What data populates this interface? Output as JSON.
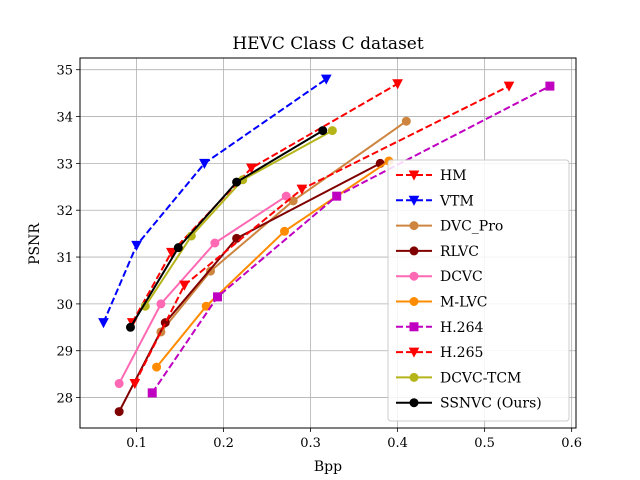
{
  "chart_data": {
    "type": "line",
    "title": "HEVC Class C dataset",
    "xlabel": "Bpp",
    "ylabel": "PSNR",
    "xlim": [
      0.035,
      0.605
    ],
    "ylim": [
      27.35,
      35.25
    ],
    "xticks": [
      "0.1",
      "0.2",
      "0.3",
      "0.4",
      "0.5",
      "0.6"
    ],
    "yticks": [
      "28",
      "29",
      "30",
      "31",
      "32",
      "33",
      "34",
      "35"
    ],
    "grid": true,
    "legend_position": "lower-right",
    "series": [
      {
        "name": "HM",
        "color": "#ff0000",
        "dash": "dashed",
        "marker": "triangle-down",
        "x": [
          0.095,
          0.14,
          0.232,
          0.4
        ],
        "y": [
          29.6,
          31.1,
          32.9,
          34.7
        ]
      },
      {
        "name": "VTM",
        "color": "#0000ff",
        "dash": "dashed",
        "marker": "triangle-down",
        "x": [
          0.062,
          0.1,
          0.178,
          0.318
        ],
        "y": [
          29.6,
          31.25,
          33.0,
          34.8
        ]
      },
      {
        "name": "DVC_Pro",
        "color": "#cd853f",
        "dash": "solid",
        "marker": "circle",
        "x": [
          0.128,
          0.185,
          0.28,
          0.41
        ],
        "y": [
          29.4,
          30.7,
          32.2,
          33.9
        ]
      },
      {
        "name": "RLVC",
        "color": "#800000",
        "dash": "solid",
        "marker": "circle",
        "x": [
          0.08,
          0.133,
          0.215,
          0.38
        ],
        "y": [
          27.7,
          29.6,
          31.4,
          33.0
        ]
      },
      {
        "name": "DCVC",
        "color": "#ff69b4",
        "dash": "solid",
        "marker": "circle",
        "x": [
          0.08,
          0.128,
          0.19,
          0.272
        ],
        "y": [
          28.3,
          30.0,
          31.3,
          32.3
        ]
      },
      {
        "name": "M-LVC",
        "color": "#ff8c00",
        "dash": "solid",
        "marker": "circle",
        "x": [
          0.123,
          0.18,
          0.27,
          0.39
        ],
        "y": [
          28.65,
          29.95,
          31.55,
          33.05
        ]
      },
      {
        "name": "H.264",
        "color": "#c000c0",
        "dash": "dashed",
        "marker": "square",
        "x": [
          0.118,
          0.193,
          0.33,
          0.575
        ],
        "y": [
          28.1,
          30.15,
          32.3,
          34.65
        ]
      },
      {
        "name": "H.265",
        "color": "#ff0000",
        "dash": "dashed",
        "marker": "triangle-down",
        "x": [
          0.098,
          0.155,
          0.29,
          0.528
        ],
        "y": [
          28.3,
          30.4,
          32.45,
          34.65
        ]
      },
      {
        "name": "DCVC-TCM",
        "color": "#b5b51a",
        "dash": "solid",
        "marker": "circle",
        "x": [
          0.11,
          0.163,
          0.222,
          0.325
        ],
        "y": [
          29.95,
          31.45,
          32.65,
          33.7
        ]
      },
      {
        "name": "SSNVC (Ours)",
        "color": "#000000",
        "dash": "solid",
        "marker": "circle",
        "x": [
          0.093,
          0.148,
          0.215,
          0.314
        ],
        "y": [
          29.5,
          31.2,
          32.6,
          33.7
        ]
      }
    ]
  }
}
